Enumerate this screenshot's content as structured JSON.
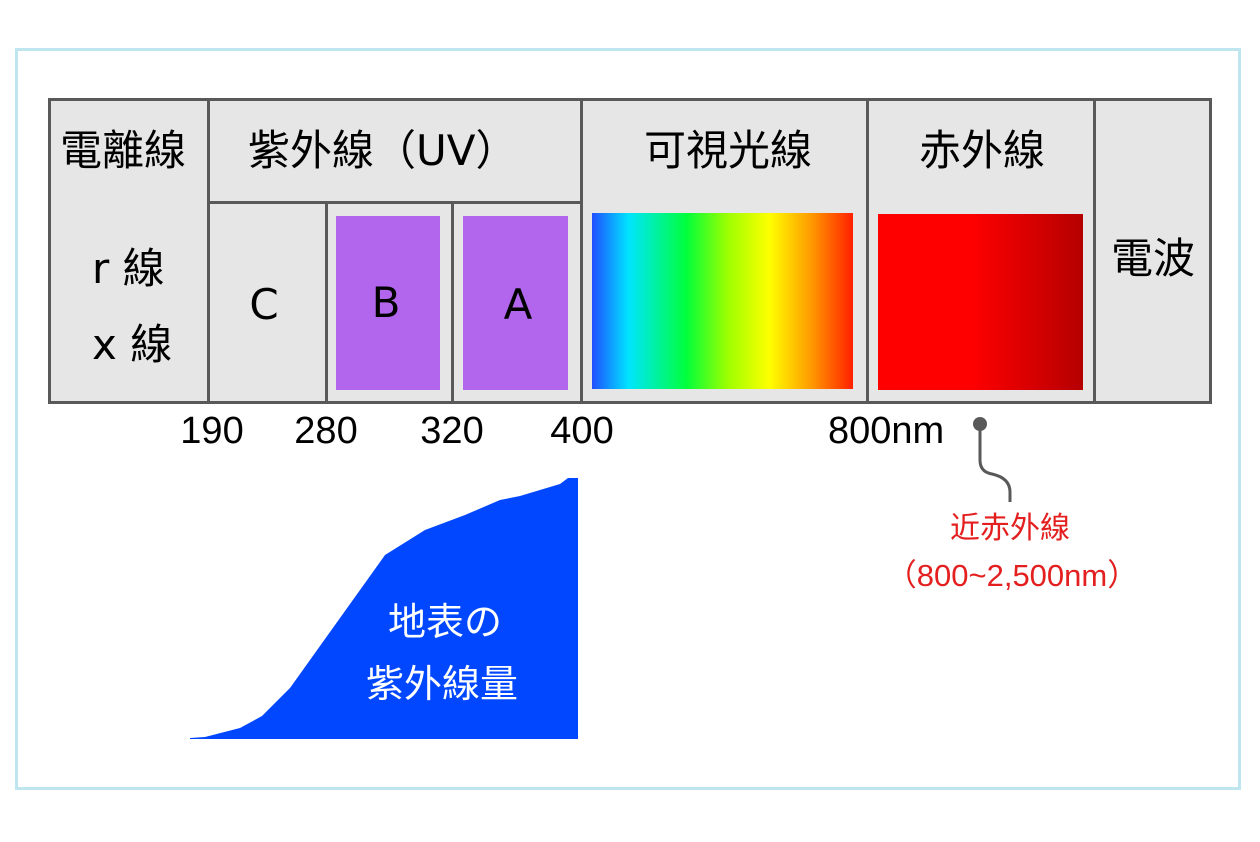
{
  "bands": {
    "ionizing": {
      "title": "電離線",
      "line1": "r 線",
      "line2": "x 線"
    },
    "uv": {
      "title": "紫外線（UV）",
      "c": "C",
      "b": "B",
      "a": "A"
    },
    "visible": {
      "title": "可視光線"
    },
    "infrared": {
      "title": "赤外線"
    },
    "radio": {
      "title": "電波"
    }
  },
  "wavelengths": {
    "w190": "190",
    "w280": "280",
    "w320": "320",
    "w400": "400",
    "w800": "800nm"
  },
  "near_ir": {
    "label": "近赤外線",
    "range": "（800~2,500nm）"
  },
  "uv_area": {
    "line1": "地表の",
    "line2": "紫外線量"
  },
  "colors": {
    "cell_bg": "#e6e6e6",
    "border": "#595959",
    "uv_purple": "#b265ed",
    "infrared_red": "#ff0000",
    "uv_area_blue": "#0047ff",
    "note_red": "#e31f1f",
    "frame": "#bfe6ee"
  }
}
